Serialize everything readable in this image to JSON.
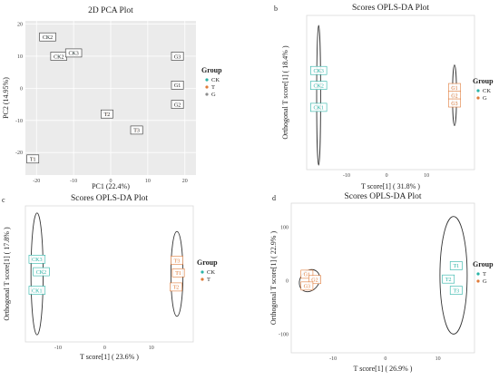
{
  "chart_data": [
    {
      "type": "scatter",
      "panel_letter": "",
      "title": "2D PCA Plot",
      "xlabel": "PC1 (22.4%)",
      "ylabel": "PC2 (14.95%)",
      "xlim": [
        -23,
        23
      ],
      "ylim": [
        -27,
        21
      ],
      "xticks": [
        -20,
        -10,
        0,
        10,
        20
      ],
      "yticks": [
        -20,
        -10,
        0,
        10,
        20
      ],
      "grid": true,
      "panel_background": "#ebebeb",
      "legend": {
        "title": "Group",
        "position": "right"
      },
      "series": [
        {
          "name": "CK",
          "color": "#2ab3a6",
          "points": [
            {
              "x": -17,
              "y": 16,
              "label": "CK2"
            },
            {
              "x": -14,
              "y": 10,
              "label": "CK2"
            },
            {
              "x": -10,
              "y": 11,
              "label": "CK3"
            }
          ]
        },
        {
          "name": "T",
          "color": "#e07b39",
          "points": [
            {
              "x": -21,
              "y": -22,
              "label": "T1"
            },
            {
              "x": -1,
              "y": -8,
              "label": "T2"
            },
            {
              "x": 7,
              "y": -13,
              "label": "T3"
            }
          ]
        },
        {
          "name": "G",
          "color": "#8e8e8e",
          "points": [
            {
              "x": 18,
              "y": 10,
              "label": "G3"
            },
            {
              "x": 18,
              "y": 1,
              "label": "G1"
            },
            {
              "x": 18,
              "y": -5,
              "label": "G2"
            }
          ]
        }
      ]
    },
    {
      "type": "scatter",
      "panel_letter": "b",
      "title": "Scores OPLS-DA Plot",
      "xlabel": "T score[1] ( 31.8% )",
      "ylabel": "Orthogonal T score[1] ( 18.4% )",
      "xlim": [
        -20,
        22
      ],
      "ylim": [
        -135,
        145
      ],
      "xticks": [
        -10,
        0,
        10
      ],
      "yticks": [],
      "grid": false,
      "legend": {
        "title": "Group",
        "position": "right"
      },
      "ellipses": [
        {
          "cx": -17,
          "cy": 0,
          "rx": 0.5,
          "ry": 127
        },
        {
          "cx": 17,
          "cy": 0,
          "rx": 0.5,
          "ry": 55
        }
      ],
      "series": [
        {
          "name": "CK",
          "color": "#2ab3a6",
          "points": [
            {
              "x": -17,
              "y": 45,
              "label": "CK3"
            },
            {
              "x": -17,
              "y": 18,
              "label": "CK2"
            },
            {
              "x": -17,
              "y": -22,
              "label": "CK1"
            }
          ]
        },
        {
          "name": "G",
          "color": "#e07b39",
          "points": [
            {
              "x": 17,
              "y": 14,
              "label": "G1"
            },
            {
              "x": 17,
              "y": 0,
              "label": "G2"
            },
            {
              "x": 17,
              "y": -14,
              "label": "G3"
            }
          ]
        }
      ]
    },
    {
      "type": "scatter",
      "panel_letter": "c",
      "title": "Scores OPLS-DA Plot",
      "xlabel": "T score[1] ( 23.6% )",
      "ylabel": "Orthogonal T score[1] ( 17.8% )",
      "xlim": [
        -17,
        19
      ],
      "ylim": [
        -125,
        125
      ],
      "xticks": [
        -10,
        0,
        10
      ],
      "yticks": [],
      "grid": false,
      "legend": {
        "title": "Group",
        "position": "right"
      },
      "ellipses": [
        {
          "cx": -14.5,
          "cy": 0,
          "rx": 1.3,
          "ry": 112
        },
        {
          "cx": 15.5,
          "cy": 0,
          "rx": 1.3,
          "ry": 78
        }
      ],
      "series": [
        {
          "name": "CK",
          "color": "#2ab3a6",
          "points": [
            {
              "x": -14.5,
              "y": 27,
              "label": "CK3"
            },
            {
              "x": -13.6,
              "y": 4,
              "label": "CK2"
            },
            {
              "x": -14.5,
              "y": -30,
              "label": "CK1"
            }
          ]
        },
        {
          "name": "T",
          "color": "#e07b39",
          "points": [
            {
              "x": 15.5,
              "y": 25,
              "label": "T3"
            },
            {
              "x": 15.8,
              "y": 2,
              "label": "T1"
            },
            {
              "x": 15.3,
              "y": -24,
              "label": "T2"
            }
          ]
        }
      ]
    },
    {
      "type": "scatter",
      "panel_letter": "d",
      "title": "Scores OPLS-DA Plot",
      "xlabel": "T score[1] ( 26.9% )",
      "ylabel": "Orthogonal T score[1] ( 22.9% )",
      "xlim": [
        -18,
        17
      ],
      "ylim": [
        -135,
        145
      ],
      "xticks": [
        -10,
        0,
        10
      ],
      "yticks": [
        -100,
        0,
        100
      ],
      "grid": false,
      "legend": {
        "title": "Group",
        "position": "right"
      },
      "ellipses": [
        {
          "cx": -14.5,
          "cy": 0,
          "rx": 1.8,
          "ry": 22,
          "rotate": 35
        },
        {
          "cx": 13,
          "cy": 10,
          "rx": 2.6,
          "ry": 110
        }
      ],
      "series": [
        {
          "name": "T",
          "color": "#2ab3a6",
          "points": [
            {
              "x": 13.5,
              "y": 28,
              "label": "T1"
            },
            {
              "x": 12,
              "y": 3,
              "label": "T2"
            },
            {
              "x": 13.5,
              "y": -18,
              "label": "T3"
            }
          ]
        },
        {
          "name": "G",
          "color": "#e07b39",
          "points": [
            {
              "x": -15,
              "y": 12,
              "label": "G1"
            },
            {
              "x": -13.5,
              "y": 2,
              "label": "G2"
            },
            {
              "x": -15,
              "y": -10,
              "label": "G3"
            }
          ]
        }
      ]
    }
  ]
}
